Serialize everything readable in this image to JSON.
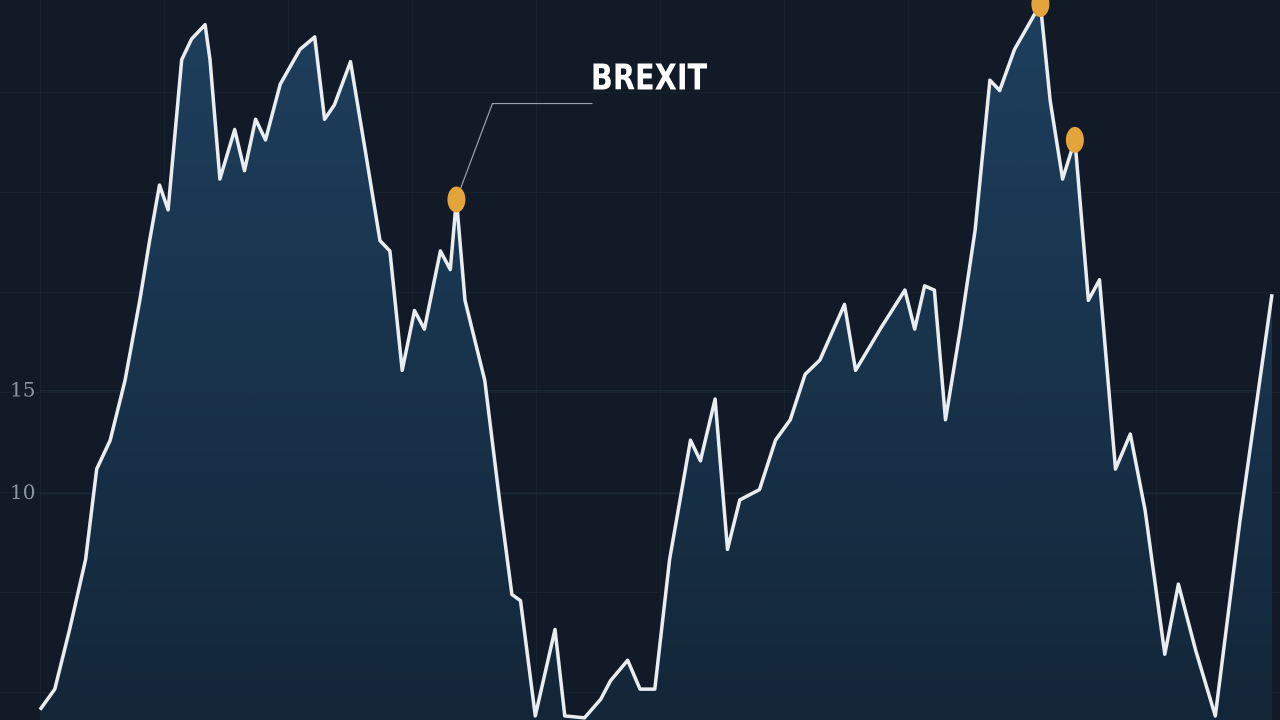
{
  "chart_data": {
    "type": "area",
    "x": [
      0,
      1.2,
      2.4,
      3.7,
      4.6,
      5.7,
      6.9,
      8.1,
      8.9,
      9.7,
      10.4,
      11.5,
      12.3,
      13.4,
      13.8,
      14.6,
      15.8,
      16.6,
      17.5,
      18.3,
      19.5,
      21.1,
      22.3,
      23.1,
      23.9,
      25.2,
      26.4,
      27.6,
      28.4,
      29.4,
      30.4,
      31.2,
      32.5,
      33.3,
      33.8,
      34.5,
      36.1,
      37.3,
      38.3,
      39.0,
      40.2,
      41.8,
      42.6,
      44.2,
      45.5,
      46.3,
      47.7,
      48.7,
      49.9,
      51.1,
      52.8,
      53.6,
      54.8,
      55.8,
      56.8,
      58.4,
      59.7,
      60.9,
      62.1,
      63.3,
      65.3,
      66.2,
      67.4,
      68.2,
      70.2,
      71.0,
      71.8,
      72.6,
      73.5,
      74.7,
      75.9,
      77.1,
      77.9,
      79.1,
      81.2,
      82.0,
      83.0,
      84.0,
      85.1,
      86.0,
      87.3,
      88.5,
      89.7,
      91.3,
      92.4,
      93.8,
      95.4,
      97.4,
      100
    ],
    "values": [
      -0.5,
      0.5,
      3.4,
      6.8,
      11.2,
      12.6,
      15.5,
      19.4,
      22.3,
      25.0,
      23.8,
      31.1,
      32.1,
      32.8,
      31.1,
      25.3,
      27.7,
      25.7,
      28.2,
      27.2,
      29.9,
      31.6,
      32.2,
      28.2,
      28.9,
      31.0,
      26.7,
      22.3,
      21.8,
      16.0,
      18.9,
      18.0,
      21.8,
      20.9,
      24.3,
      19.4,
      15.5,
      9.7,
      5.1,
      4.8,
      -0.8,
      3.4,
      -0.8,
      -0.9,
      0.0,
      0.9,
      1.9,
      0.5,
      0.5,
      6.8,
      12.6,
      11.6,
      14.6,
      7.3,
      9.7,
      10.2,
      12.6,
      13.6,
      15.8,
      16.5,
      19.2,
      16.0,
      17.2,
      18.0,
      19.9,
      18.0,
      20.1,
      19.9,
      13.6,
      18.0,
      22.8,
      30.1,
      29.6,
      31.6,
      33.8,
      29.1,
      25.3,
      27.2,
      19.4,
      20.4,
      11.2,
      12.9,
      9.2,
      2.2,
      5.6,
      2.4,
      -0.8,
      8.7,
      19.7
    ],
    "color": "#e9edf0",
    "xlim": [
      0,
      100
    ],
    "ylim": [
      -1,
      34
    ],
    "yticks": [
      10,
      15
    ],
    "grid": true,
    "annotations": [
      {
        "label": "BREXIT",
        "x": 33.8,
        "y": 24.3,
        "color": "#e3a43c"
      },
      {
        "x": 81.2,
        "y": 33.8,
        "color": "#e3a43c"
      },
      {
        "x": 84.0,
        "y": 27.2,
        "color": "#e3a43c"
      }
    ]
  }
}
